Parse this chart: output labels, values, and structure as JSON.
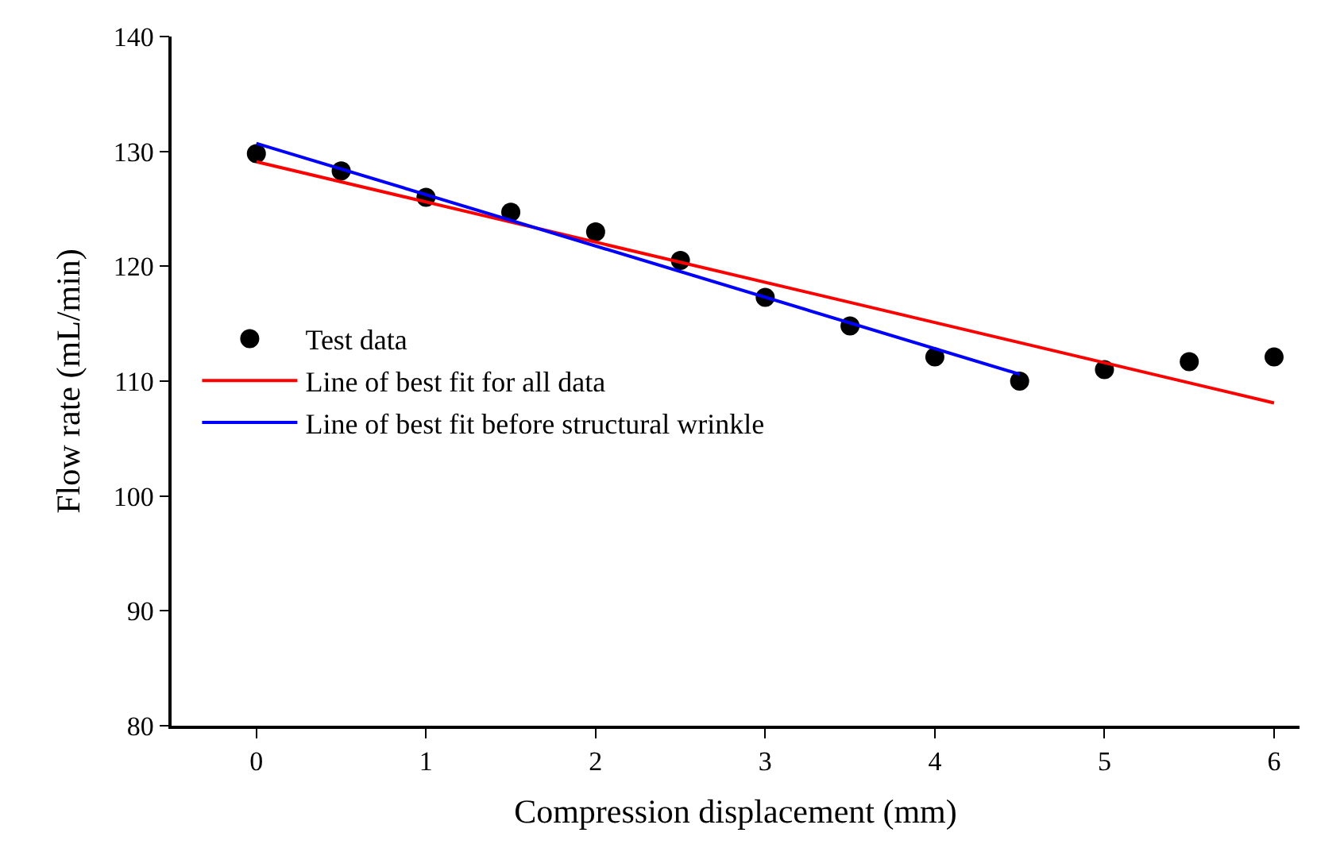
{
  "chart_data": {
    "type": "scatter",
    "xlabel": "Compression displacement (mm)",
    "ylabel": "Flow rate (mL/min)",
    "xlim": [
      -0.5,
      6.15
    ],
    "xticks": [
      0,
      1,
      2,
      3,
      4,
      5,
      6
    ],
    "ylim": [
      80,
      140
    ],
    "yticks": [
      80,
      90,
      100,
      110,
      120,
      130,
      140
    ],
    "grid": false,
    "legend": "left",
    "series": [
      {
        "name": "Test data",
        "marker": "circle",
        "color": "#000000",
        "x": [
          0,
          0.5,
          1,
          1.5,
          2,
          2.5,
          3,
          3.5,
          4,
          4.5,
          5,
          5.5,
          6
        ],
        "values": [
          129.8,
          128.3,
          126.0,
          124.7,
          123.0,
          120.5,
          117.3,
          114.8,
          112.1,
          110.0,
          111.0,
          111.7,
          112.1
        ]
      },
      {
        "name": "Line of best fit for all data",
        "type": "line",
        "marker": "none",
        "line_style": "solid",
        "color": "#ff0000",
        "x": [
          0,
          6
        ],
        "values": [
          129.1,
          108.1
        ]
      },
      {
        "name": "Line of best fit before structural wrinkle",
        "type": "line",
        "marker": "none",
        "line_style": "solid",
        "color": "#0000ff",
        "x": [
          0,
          4.5
        ],
        "values": [
          130.7,
          110.6
        ]
      }
    ]
  }
}
